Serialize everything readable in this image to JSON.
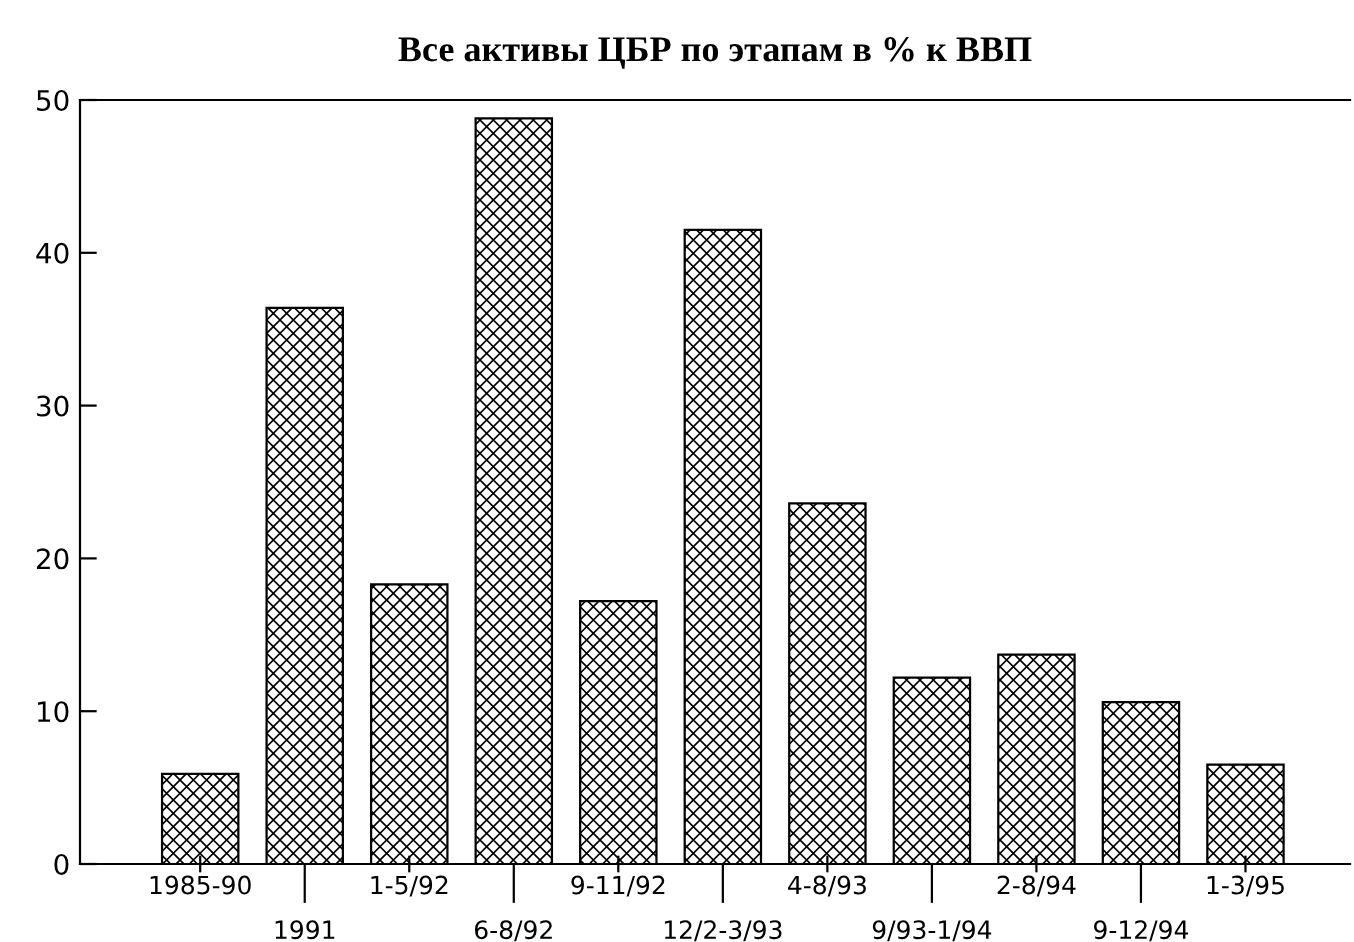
{
  "chart_data": {
    "type": "bar",
    "title": "Все активы ЦБР по этапам в % к ВВП",
    "categories": [
      "1985-90",
      "1991",
      "1-5/92",
      "6-8/92",
      "9-11/92",
      "12/2-3/93",
      "4-8/93",
      "9/93-1/94",
      "2-8/94",
      "9-12/94",
      "1-3/95"
    ],
    "values": [
      5.9,
      36.4,
      18.3,
      48.8,
      17.2,
      41.5,
      23.6,
      12.2,
      13.7,
      10.6,
      6.5
    ],
    "color": "#000000",
    "ylim": [
      0,
      50
    ],
    "yticks": [
      0,
      10,
      20,
      30,
      40,
      50
    ],
    "grid": false
  }
}
